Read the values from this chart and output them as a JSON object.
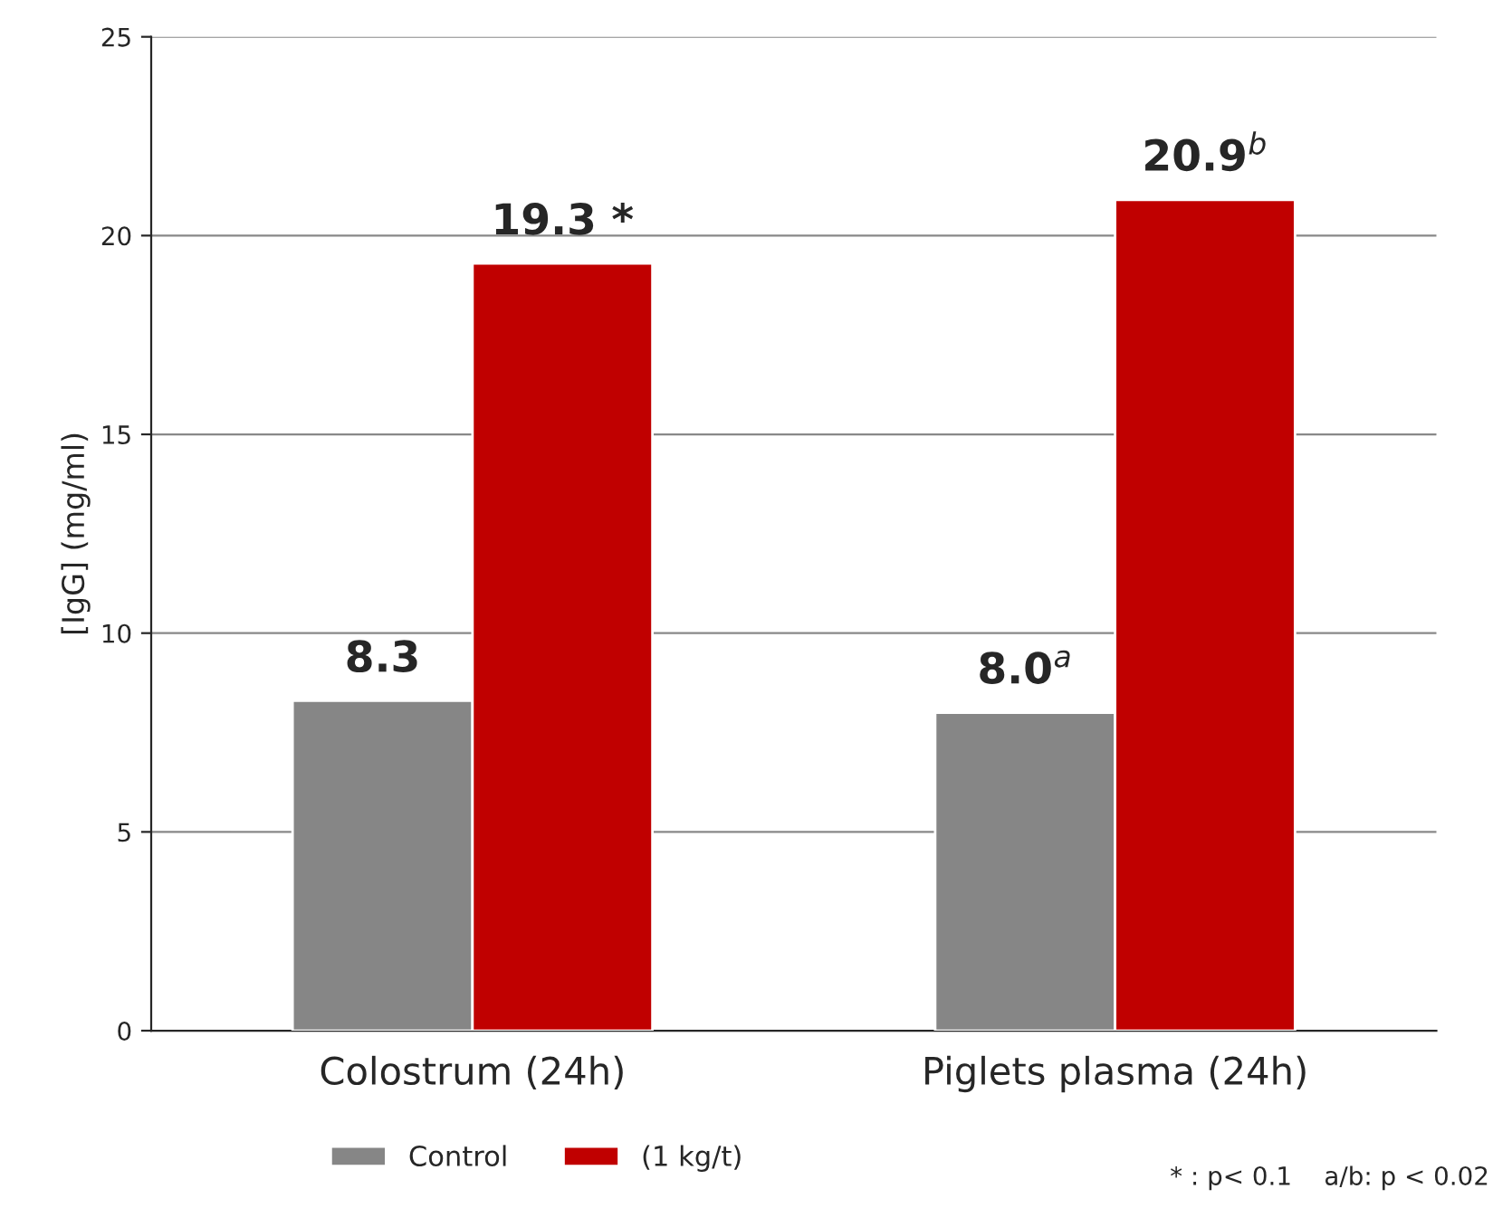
{
  "chart_data": {
    "type": "bar",
    "ylabel": "[IgG] (mg/ml)",
    "categories": [
      "Colostrum (24h)",
      "Piglets plasma (24h)"
    ],
    "series": [
      {
        "name": "Control",
        "color": "#868686",
        "values": [
          8.3,
          8.0
        ],
        "value_labels": [
          "8.3",
          "8.0$^{a}$"
        ]
      },
      {
        "name": "(1 kg/t)",
        "color": "#c00000",
        "values": [
          19.3,
          20.9
        ],
        "value_labels": [
          "19.3 *",
          "20.9$^{b}$"
        ]
      }
    ],
    "ylim": [
      0,
      25
    ],
    "yticks": [
      0,
      5,
      10,
      15,
      20,
      25
    ],
    "grid": "y",
    "legend": "bottom",
    "annotations": [
      "* : p< 0.1    a/b: p < 0.02"
    ]
  }
}
